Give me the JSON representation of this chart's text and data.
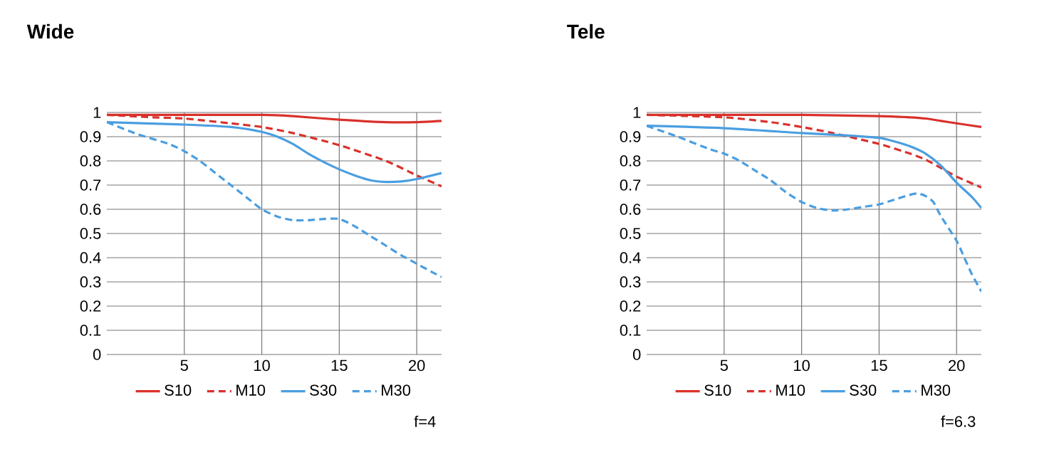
{
  "chart_data": [
    {
      "type": "line",
      "title": "Wide",
      "annotations": [
        "f=4"
      ],
      "xlim": [
        0,
        21.6
      ],
      "ylim": [
        0,
        1
      ],
      "xticks": [
        5,
        10,
        15,
        20
      ],
      "yticks": [
        0,
        0.1,
        0.2,
        0.3,
        0.4,
        0.5,
        0.6,
        0.7,
        0.8,
        0.9,
        1
      ],
      "grid": true,
      "legend": "bottom",
      "marker": "none",
      "series": [
        {
          "name": "S10",
          "color": "#d9312b",
          "line_style": "solid",
          "x": [
            0,
            5,
            10,
            12,
            15,
            18,
            20,
            21.6
          ],
          "values": [
            0.99,
            0.99,
            0.99,
            0.985,
            0.97,
            0.96,
            0.96,
            0.965
          ]
        },
        {
          "name": "M10",
          "color": "#d9312b",
          "line_style": "dashed",
          "x": [
            0,
            3,
            5,
            8,
            10,
            12,
            15,
            18,
            20,
            21.6
          ],
          "values": [
            0.99,
            0.98,
            0.975,
            0.955,
            0.94,
            0.915,
            0.865,
            0.8,
            0.74,
            0.695
          ]
        },
        {
          "name": "S30",
          "color": "#4a9ee0",
          "line_style": "solid",
          "x": [
            0,
            5,
            8,
            10,
            11,
            12,
            13,
            14,
            15,
            16,
            17,
            18,
            19,
            20,
            21.6
          ],
          "values": [
            0.96,
            0.95,
            0.94,
            0.92,
            0.9,
            0.87,
            0.83,
            0.795,
            0.765,
            0.74,
            0.72,
            0.713,
            0.715,
            0.725,
            0.75
          ]
        },
        {
          "name": "M30",
          "color": "#4a9ee0",
          "line_style": "dashed",
          "x": [
            0,
            2,
            4,
            5,
            6,
            7,
            8,
            9,
            10,
            11,
            12,
            13,
            14,
            15,
            16,
            17,
            18,
            19,
            20,
            21,
            21.6
          ],
          "values": [
            0.96,
            0.91,
            0.87,
            0.84,
            0.8,
            0.75,
            0.7,
            0.65,
            0.6,
            0.57,
            0.555,
            0.555,
            0.56,
            0.56,
            0.53,
            0.49,
            0.45,
            0.41,
            0.375,
            0.34,
            0.32
          ]
        }
      ]
    },
    {
      "type": "line",
      "title": "Tele",
      "annotations": [
        "f=6.3"
      ],
      "xlim": [
        0,
        21.6
      ],
      "ylim": [
        0,
        1
      ],
      "xticks": [
        5,
        10,
        15,
        20
      ],
      "yticks": [
        0,
        0.1,
        0.2,
        0.3,
        0.4,
        0.5,
        0.6,
        0.7,
        0.8,
        0.9,
        1
      ],
      "grid": true,
      "legend": "bottom",
      "marker": "none",
      "series": [
        {
          "name": "S10",
          "color": "#d9312b",
          "line_style": "solid",
          "x": [
            0,
            5,
            10,
            15,
            17,
            18,
            19,
            20,
            21.6
          ],
          "values": [
            0.99,
            0.99,
            0.99,
            0.985,
            0.98,
            0.975,
            0.965,
            0.955,
            0.94
          ]
        },
        {
          "name": "M10",
          "color": "#d9312b",
          "line_style": "dashed",
          "x": [
            0,
            5,
            8,
            10,
            12,
            15,
            17,
            18,
            19,
            20,
            21.6
          ],
          "values": [
            0.99,
            0.98,
            0.96,
            0.94,
            0.915,
            0.87,
            0.83,
            0.805,
            0.77,
            0.735,
            0.69
          ]
        },
        {
          "name": "S30",
          "color": "#4a9ee0",
          "line_style": "solid",
          "x": [
            0,
            5,
            10,
            13,
            15,
            16,
            17,
            18,
            19,
            20,
            21,
            21.6
          ],
          "values": [
            0.945,
            0.935,
            0.915,
            0.905,
            0.895,
            0.88,
            0.86,
            0.83,
            0.78,
            0.71,
            0.65,
            0.605
          ]
        },
        {
          "name": "M30",
          "color": "#4a9ee0",
          "line_style": "dashed",
          "x": [
            0,
            2,
            4,
            5,
            6,
            7,
            8,
            9,
            10,
            11,
            12,
            13,
            14,
            15,
            16,
            17,
            17.5,
            18,
            18.5,
            19,
            20,
            20.5,
            21,
            21.6
          ],
          "values": [
            0.945,
            0.9,
            0.85,
            0.83,
            0.8,
            0.76,
            0.72,
            0.67,
            0.63,
            0.605,
            0.595,
            0.6,
            0.61,
            0.62,
            0.64,
            0.66,
            0.665,
            0.655,
            0.63,
            0.57,
            0.47,
            0.4,
            0.33,
            0.26
          ]
        }
      ]
    }
  ]
}
